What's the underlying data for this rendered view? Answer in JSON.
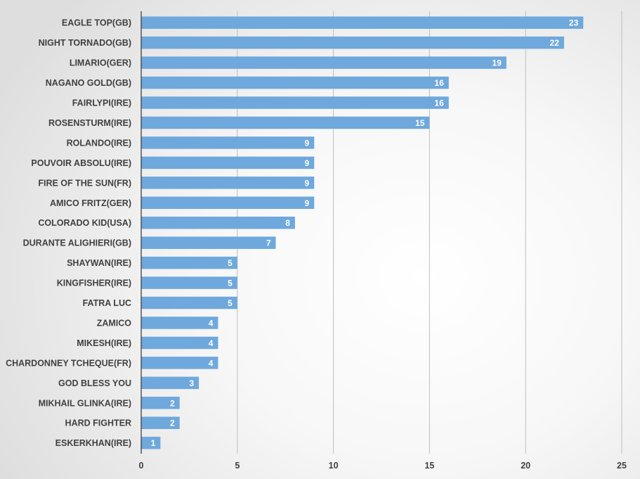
{
  "chart_data": {
    "type": "bar",
    "orientation": "horizontal",
    "title": "",
    "xlabel": "",
    "ylabel": "",
    "categories": [
      "EAGLE TOP(GB)",
      "NIGHT TORNADO(GB)",
      "LIMARIO(GER)",
      "NAGANO GOLD(GB)",
      "FAIRLYPI(IRE)",
      "ROSENSTURM(IRE)",
      "ROLANDO(IRE)",
      "POUVOIR ABSOLU(IRE)",
      "FIRE OF THE SUN(FR)",
      "AMICO FRITZ(GER)",
      "COLORADO KID(USA)",
      "DURANTE ALIGHIERI(GB)",
      "SHAYWAN(IRE)",
      "KINGFISHER(IRE)",
      "FATRA LUC",
      "ZAMICO",
      "MIKESH(IRE)",
      "CHARDONNEY TCHEQUE(FR)",
      "GOD BLESS YOU",
      "MIKHAIL GLINKA(IRE)",
      "HARD FIGHTER",
      "ESKERKHAN(IRE)"
    ],
    "values": [
      23,
      22,
      19,
      16,
      16,
      15,
      9,
      9,
      9,
      9,
      8,
      7,
      5,
      5,
      5,
      4,
      4,
      4,
      3,
      2,
      2,
      1
    ],
    "xlim": [
      0,
      25
    ],
    "xticks": [
      "0",
      "5",
      "10",
      "15",
      "20",
      "25"
    ],
    "grid": "vertical",
    "legend": "none",
    "data_labels": true,
    "colors": {
      "bar": "#6fa8dc",
      "grid": "#bfbfbf",
      "axis": "#404040",
      "label": "#404040",
      "data_label": "#ffffff"
    }
  }
}
